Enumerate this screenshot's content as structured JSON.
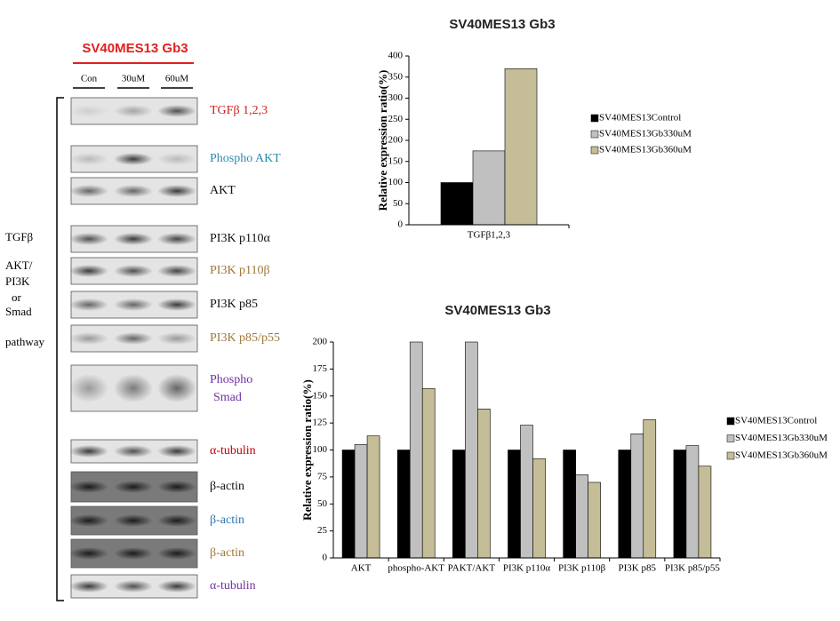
{
  "blot": {
    "header": "SV40MES13 Gb3",
    "lanes": [
      "Con",
      "30uM",
      "60uM"
    ],
    "side_labels": [
      "TGFβ",
      "AKT/",
      "PI3K",
      "or",
      "Smad",
      "pathway"
    ],
    "bands": [
      {
        "label": "TGFβ 1,2,3",
        "color": "#d02020"
      },
      {
        "label": "Phospho AKT",
        "color": "#2e8bab"
      },
      {
        "label": "AKT",
        "color": "#111111"
      },
      {
        "label": "PI3K p110α",
        "color": "#111111"
      },
      {
        "label": "PI3K p110β",
        "color": "#a0783a"
      },
      {
        "label": "PI3K p85",
        "color": "#111111"
      },
      {
        "label": "PI3K p85/p55",
        "color": "#a0783a"
      },
      {
        "label": "Phospho Smad",
        "color": "#7030a0"
      },
      {
        "label": "α-tubulin",
        "color": "#c00000"
      },
      {
        "label": "β-actin",
        "color": "#111111"
      },
      {
        "label": "β-actin",
        "color": "#2e75b6"
      },
      {
        "label": "β-actin",
        "color": "#a0783a"
      },
      {
        "label": "α-tubulin",
        "color": "#7030a0"
      }
    ]
  },
  "chart_data": [
    {
      "type": "bar",
      "title": "SV40MES13 Gb3",
      "y_label": "Relative expression ratio(%)",
      "categories": [
        "TGFβ1,2,3"
      ],
      "series": [
        {
          "name": "SV40MES13Control",
          "color": "#000000",
          "values": [
            100
          ]
        },
        {
          "name": "SV40MES13Gb330uM",
          "color": "#c0c0c0",
          "values": [
            175
          ]
        },
        {
          "name": "SV40MES13Gb360uM",
          "color": "#c4bd97",
          "values": [
            370
          ]
        }
      ],
      "ylim": [
        0,
        400
      ],
      "yticks": [
        0,
        50,
        100,
        150,
        200,
        250,
        300,
        350,
        400
      ],
      "legend": "right"
    },
    {
      "type": "bar",
      "title": "SV40MES13 Gb3",
      "y_label": "Relative expression ratio(%)",
      "categories": [
        "AKT",
        "phospho-AKT",
        "PAKT/AKT",
        "PI3K p110α",
        "PI3K p110β",
        "PI3K p85",
        "PI3K p85/p55"
      ],
      "series": [
        {
          "name": "SV40MES13Control",
          "color": "#000000",
          "values": [
            100,
            100,
            100,
            100,
            100,
            100,
            100
          ]
        },
        {
          "name": "SV40MES13Gb330uM",
          "color": "#c0c0c0",
          "values": [
            105,
            200,
            200,
            123,
            77,
            115,
            104
          ]
        },
        {
          "name": "SV40MES13Gb360uM",
          "color": "#c4bd97",
          "values": [
            113,
            157,
            138,
            92,
            70,
            128,
            85
          ]
        }
      ],
      "ylim": [
        0,
        200
      ],
      "yticks": [
        0,
        25,
        50,
        75,
        100,
        125,
        150,
        175,
        200
      ],
      "legend": "right"
    }
  ]
}
